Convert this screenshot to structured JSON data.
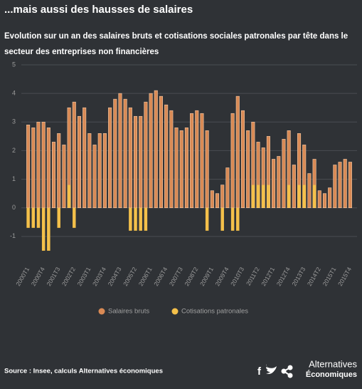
{
  "chart_data": {
    "type": "bar",
    "title": "...mais aussi des hausses de salaires",
    "subtitle": "Evolution sur un an des salaires bruts et cotisations sociales patronales par tête dans le secteur des entreprises non financières",
    "categories": [
      "2000T1",
      null,
      null,
      "2000T4",
      null,
      null,
      "2001T3",
      null,
      null,
      "2002T2",
      null,
      null,
      "2003T1",
      null,
      null,
      "2003T4",
      null,
      null,
      "2004T3",
      null,
      null,
      "2005T2",
      null,
      null,
      "2006T1",
      null,
      null,
      "2006T4",
      null,
      null,
      "2007T3",
      null,
      null,
      "2008T2",
      null,
      null,
      "2009T1",
      null,
      null,
      "2009T4",
      null,
      null,
      "2010T3",
      null,
      null,
      "2011T2",
      null,
      null,
      "2012T1",
      null,
      null,
      "2012T4",
      null,
      null,
      "2013T3",
      null,
      null,
      "2014T2",
      null,
      null,
      "2015T1",
      null,
      null,
      "2015T4"
    ],
    "series": [
      {
        "name": "Salaires bruts",
        "color": "#d98a55",
        "values": [
          2.9,
          2.8,
          3.0,
          3.0,
          2.8,
          2.3,
          2.6,
          2.2,
          3.5,
          3.7,
          3.2,
          3.5,
          2.6,
          2.2,
          2.6,
          2.6,
          3.5,
          3.8,
          4.0,
          3.8,
          3.5,
          3.2,
          3.2,
          3.7,
          4.0,
          4.1,
          3.9,
          3.6,
          3.4,
          2.8,
          2.7,
          2.8,
          3.3,
          3.4,
          3.3,
          2.7,
          0.6,
          0.5,
          0.8,
          1.4,
          3.3,
          3.9,
          3.4,
          2.7,
          3.0,
          2.3,
          2.1,
          2.5,
          1.7,
          1.8,
          2.4,
          2.7,
          1.5,
          2.6,
          2.2,
          1.2,
          1.7,
          0.6,
          0.5,
          0.7,
          1.5,
          1.6,
          1.7,
          1.6
        ]
      },
      {
        "name": "Cotisations patronales",
        "color": "#f4c04a",
        "values": [
          -0.7,
          -0.7,
          -0.7,
          -1.5,
          -1.5,
          0,
          -0.7,
          0,
          0.8,
          -0.7,
          0,
          0,
          0,
          0,
          0,
          0,
          0,
          0,
          0,
          0,
          -0.8,
          -0.8,
          -0.8,
          -0.8,
          0,
          0,
          0,
          0,
          0,
          0,
          0,
          0,
          0,
          0,
          0,
          -0.8,
          0,
          0,
          -0.8,
          0,
          -0.8,
          -0.8,
          0,
          0,
          0.8,
          0.8,
          0.8,
          0.8,
          0,
          0,
          0,
          0.8,
          0,
          0.8,
          0.8,
          0,
          0.8,
          0,
          0,
          0,
          0,
          0,
          0,
          0
        ]
      }
    ],
    "ylim": [
      -2,
      5
    ],
    "yticks": [
      -1,
      0,
      1,
      2,
      3,
      4,
      5
    ],
    "grid": true,
    "source": "Source : Insee, calculs Alternatives économiques",
    "brand": [
      "Alternatives",
      "Économiques"
    ]
  }
}
